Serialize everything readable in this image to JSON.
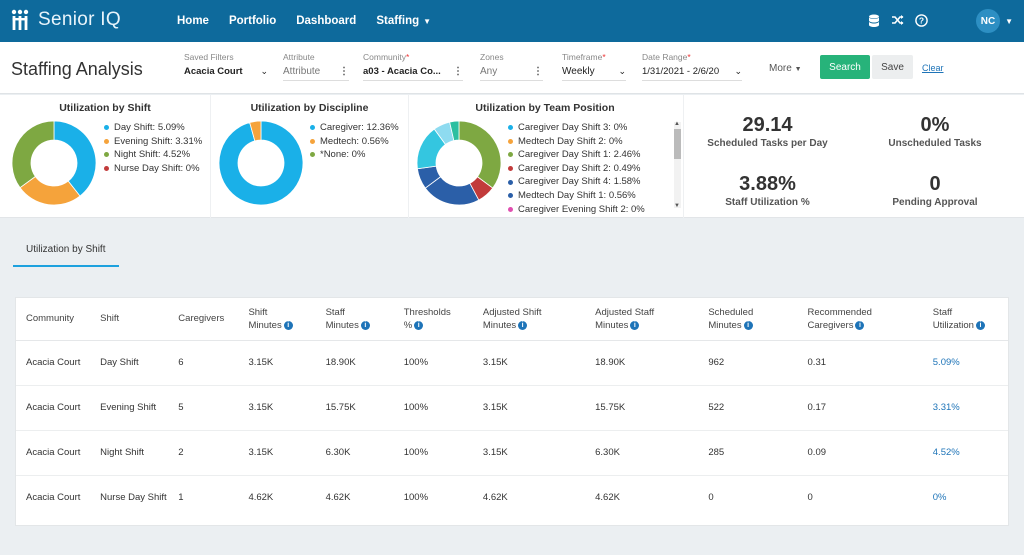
{
  "app": {
    "name": "Senior IQ"
  },
  "nav": {
    "items": [
      "Home",
      "Portfolio",
      "Dashboard",
      "Staffing"
    ]
  },
  "user": {
    "initials": "NC"
  },
  "page": {
    "title": "Staffing Analysis"
  },
  "filters": {
    "saved_filters": {
      "label": "Saved Filters",
      "value": "Acacia Court"
    },
    "attribute": {
      "label": "Attribute",
      "value": "Attribute"
    },
    "community": {
      "label": "Community",
      "value": "a03 - Acacia Co..."
    },
    "zones": {
      "label": "Zones",
      "value": "Any"
    },
    "timeframe": {
      "label": "Timeframe",
      "value": "Weekly"
    },
    "date_range": {
      "label": "Date Range",
      "value": "1/31/2021 - 2/6/20"
    },
    "more": "More",
    "search": "Search",
    "save": "Save",
    "clear": "Clear"
  },
  "charts": [
    {
      "title": "Utilization by Shift",
      "legend": [
        {
          "label": "Day Shift: 5.09%",
          "color": "#1ab0e8"
        },
        {
          "label": "Evening Shift: 3.31%",
          "color": "#f5a33b"
        },
        {
          "label": "Night Shift: 4.52%",
          "color": "#7ea842"
        },
        {
          "label": "Nurse Day Shift: 0%",
          "color": "#c23b3b"
        }
      ]
    },
    {
      "title": "Utilization by Discipline",
      "legend": [
        {
          "label": "Caregiver: 12.36%",
          "color": "#1ab0e8"
        },
        {
          "label": "Medtech: 0.56%",
          "color": "#f5a33b"
        },
        {
          "label": "*None: 0%",
          "color": "#7ea842"
        }
      ]
    },
    {
      "title": "Utilization by Team Position",
      "legend": [
        {
          "label": "Caregiver Day Shift 3: 0%",
          "color": "#1ab0e8"
        },
        {
          "label": "Medtech Day Shift 2: 0%",
          "color": "#f5a33b"
        },
        {
          "label": "Caregiver Day Shift 1: 2.46%",
          "color": "#7ea842"
        },
        {
          "label": "Caregiver Day Shift 2: 0.49%",
          "color": "#c23b3b"
        },
        {
          "label": "Caregiver Day Shift 4: 1.58%",
          "color": "#2b5fa8"
        },
        {
          "label": "Medtech Day Shift 1: 0.56%",
          "color": "#2b5fa8"
        },
        {
          "label": "Caregiver Evening Shift 2: 0%",
          "color": "#e04fb0"
        }
      ]
    }
  ],
  "chart_data": [
    {
      "type": "pie",
      "title": "Utilization by Shift",
      "categories": [
        "Day Shift",
        "Evening Shift",
        "Night Shift",
        "Nurse Day Shift"
      ],
      "values": [
        5.09,
        3.31,
        4.52,
        0
      ]
    },
    {
      "type": "pie",
      "title": "Utilization by Discipline",
      "categories": [
        "Caregiver",
        "Medtech",
        "*None"
      ],
      "values": [
        12.36,
        0.56,
        0
      ]
    },
    {
      "type": "pie",
      "title": "Utilization by Team Position",
      "categories": [
        "Caregiver Day Shift 3",
        "Medtech Day Shift 2",
        "Caregiver Day Shift 1",
        "Caregiver Day Shift 2",
        "Caregiver Day Shift 4",
        "Medtech Day Shift 1",
        "Caregiver Evening Shift 2"
      ],
      "values": [
        0,
        0,
        2.46,
        0.49,
        1.58,
        0.56,
        0
      ]
    }
  ],
  "stats": [
    {
      "value": "29.14",
      "label": "Scheduled Tasks per Day"
    },
    {
      "value": "0%",
      "label": "Unscheduled Tasks"
    },
    {
      "value": "3.88%",
      "label": "Staff Utilization %"
    },
    {
      "value": "0",
      "label": "Pending Approval"
    }
  ],
  "tabs": [
    {
      "label": "Utilization by Shift"
    }
  ],
  "table": {
    "columns": [
      {
        "line1": "Community",
        "line2": "",
        "info": false
      },
      {
        "line1": "Shift",
        "line2": "",
        "info": false
      },
      {
        "line1": "Caregivers",
        "line2": "",
        "info": false
      },
      {
        "line1": "Shift",
        "line2": "Minutes",
        "info": true
      },
      {
        "line1": "Staff",
        "line2": "Minutes",
        "info": true
      },
      {
        "line1": "Thresholds",
        "line2": "%",
        "info": true
      },
      {
        "line1": "Adjusted Shift",
        "line2": "Minutes",
        "info": true
      },
      {
        "line1": "Adjusted Staff",
        "line2": "Minutes",
        "info": true
      },
      {
        "line1": "Scheduled",
        "line2": "Minutes",
        "info": true
      },
      {
        "line1": "Recommended",
        "line2": "Caregivers",
        "info": true
      },
      {
        "line1": "Staff",
        "line2": "Utilization",
        "info": true
      }
    ],
    "rows": [
      [
        "Acacia Court",
        "Day Shift",
        "6",
        "3.15K",
        "18.90K",
        "100%",
        "3.15K",
        "18.90K",
        "962",
        "0.31",
        "5.09%"
      ],
      [
        "Acacia Court",
        "Evening Shift",
        "5",
        "3.15K",
        "15.75K",
        "100%",
        "3.15K",
        "15.75K",
        "522",
        "0.17",
        "3.31%"
      ],
      [
        "Acacia Court",
        "Night Shift",
        "2",
        "3.15K",
        "6.30K",
        "100%",
        "3.15K",
        "6.30K",
        "285",
        "0.09",
        "4.52%"
      ],
      [
        "Acacia Court",
        "Nurse Day Shift",
        "1",
        "4.62K",
        "4.62K",
        "100%",
        "4.62K",
        "4.62K",
        "0",
        "0",
        "0%"
      ]
    ]
  },
  "colors": {
    "header": "#0e6a9c",
    "accent": "#1da1de",
    "search_button": "#27b37a",
    "link": "#1e74b8"
  }
}
